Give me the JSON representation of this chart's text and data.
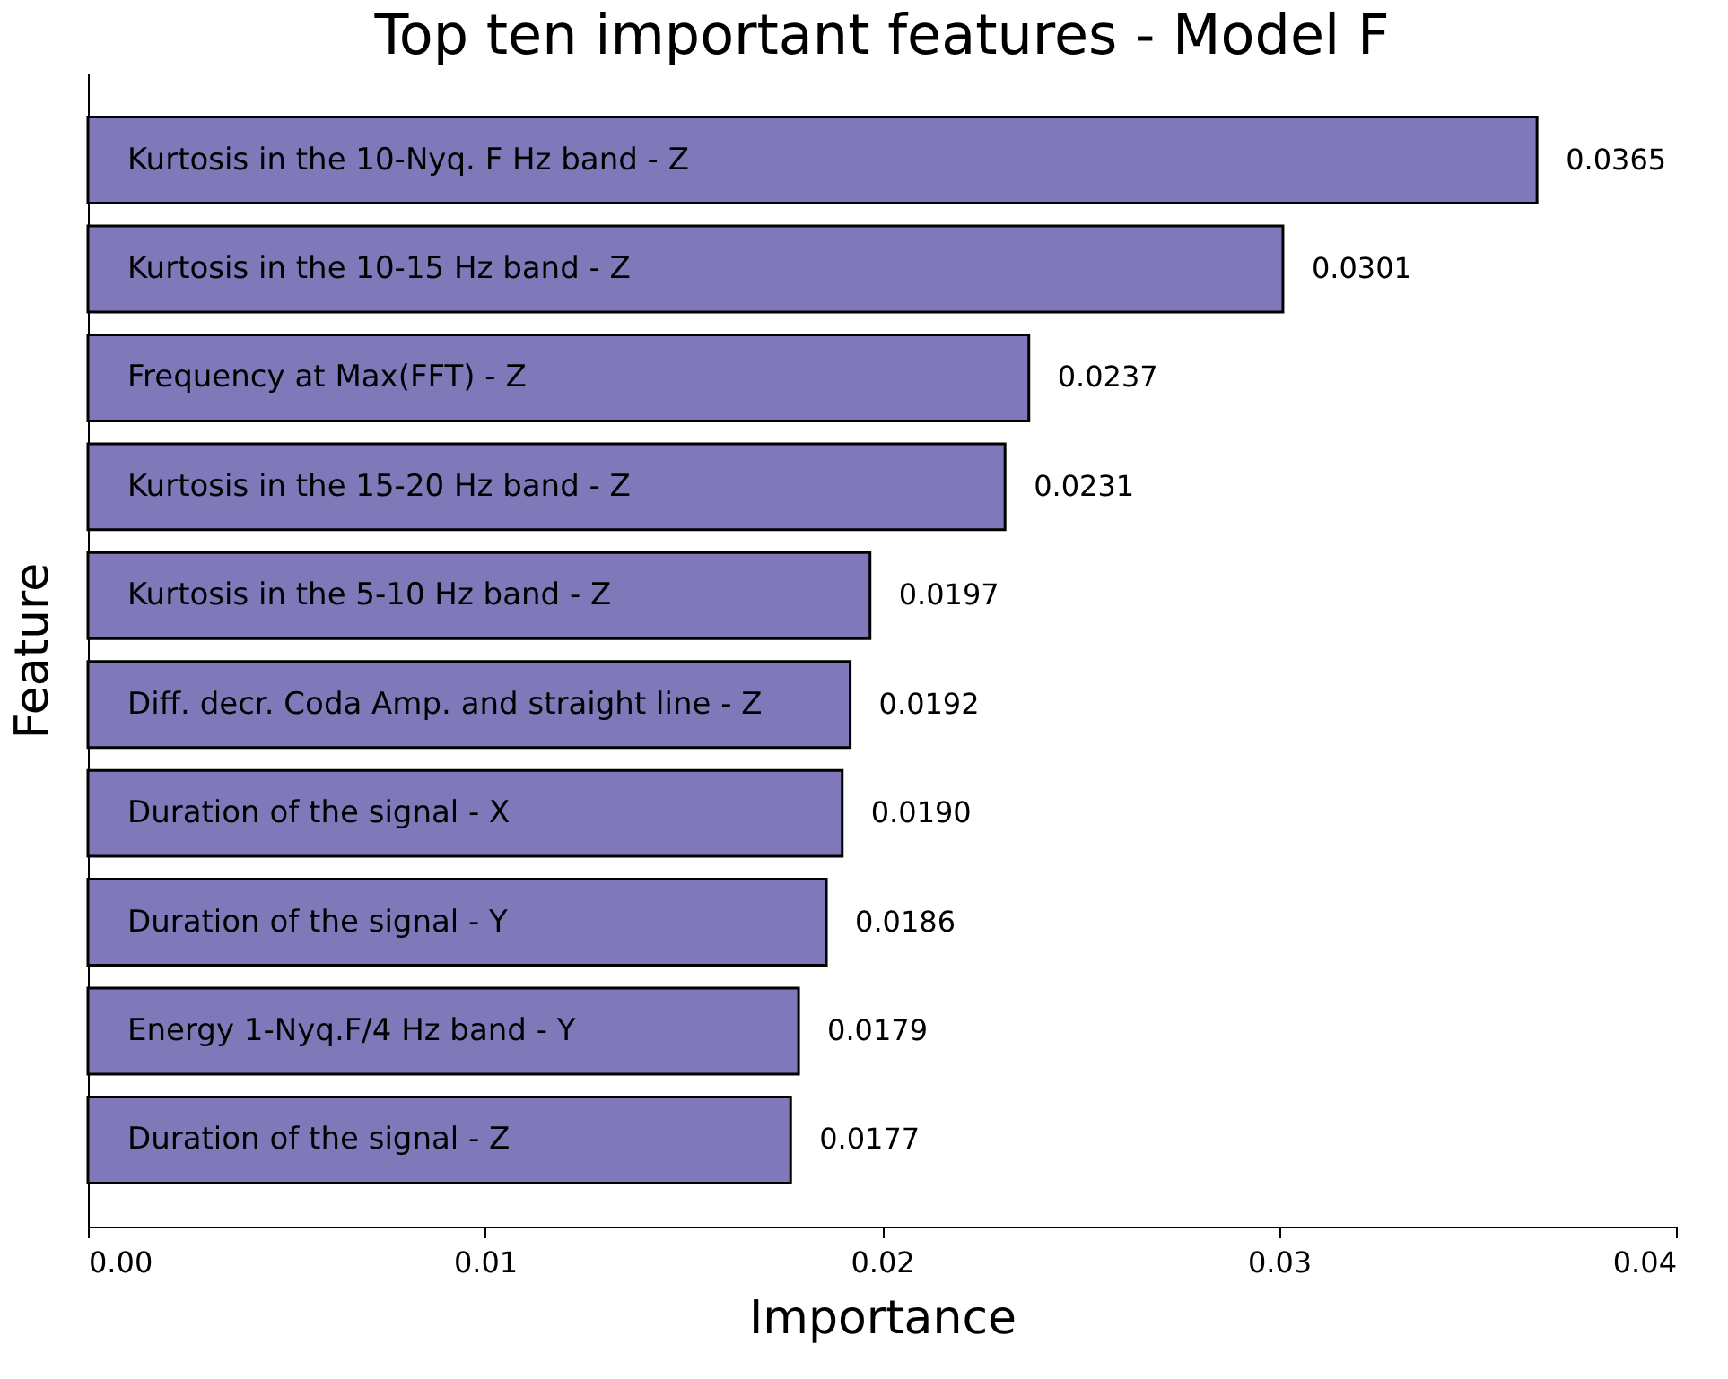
{
  "chart_data": {
    "type": "bar",
    "orientation": "horizontal",
    "title": "Top ten important features - Model F",
    "xlabel": "Importance",
    "ylabel": "Feature",
    "categories": [
      "Kurtosis in the 10-Nyq. F Hz band - Z",
      "Kurtosis in the 10-15 Hz band - Z",
      "Frequency at Max(FFT) - Z",
      "Kurtosis in the 15-20 Hz band - Z",
      "Kurtosis in the 5-10 Hz band - Z",
      "Diff. decr. Coda Amp. and straight line - Z",
      "Duration of the signal - X",
      "Duration of the signal - Y",
      "Energy 1-Nyq.F/4 Hz band - Y",
      "Duration of the signal - Z"
    ],
    "values": [
      0.0365,
      0.0301,
      0.0237,
      0.0231,
      0.0197,
      0.0192,
      0.019,
      0.0186,
      0.0179,
      0.0177
    ],
    "color": "#8079b9",
    "xlim": [
      0,
      0.04
    ],
    "xticks": [
      {
        "value": 0,
        "label": "0.00"
      },
      0.01,
      0.02,
      0.03,
      0.04
    ],
    "value_labels": [
      "0.0365",
      "0.0301",
      "0.0237",
      "0.0231",
      "0.0197",
      "0.0192",
      "0.0190",
      "0.0186",
      "0.0179",
      "0.0177"
    ],
    "grid": false,
    "tick_labels": "x"
  }
}
